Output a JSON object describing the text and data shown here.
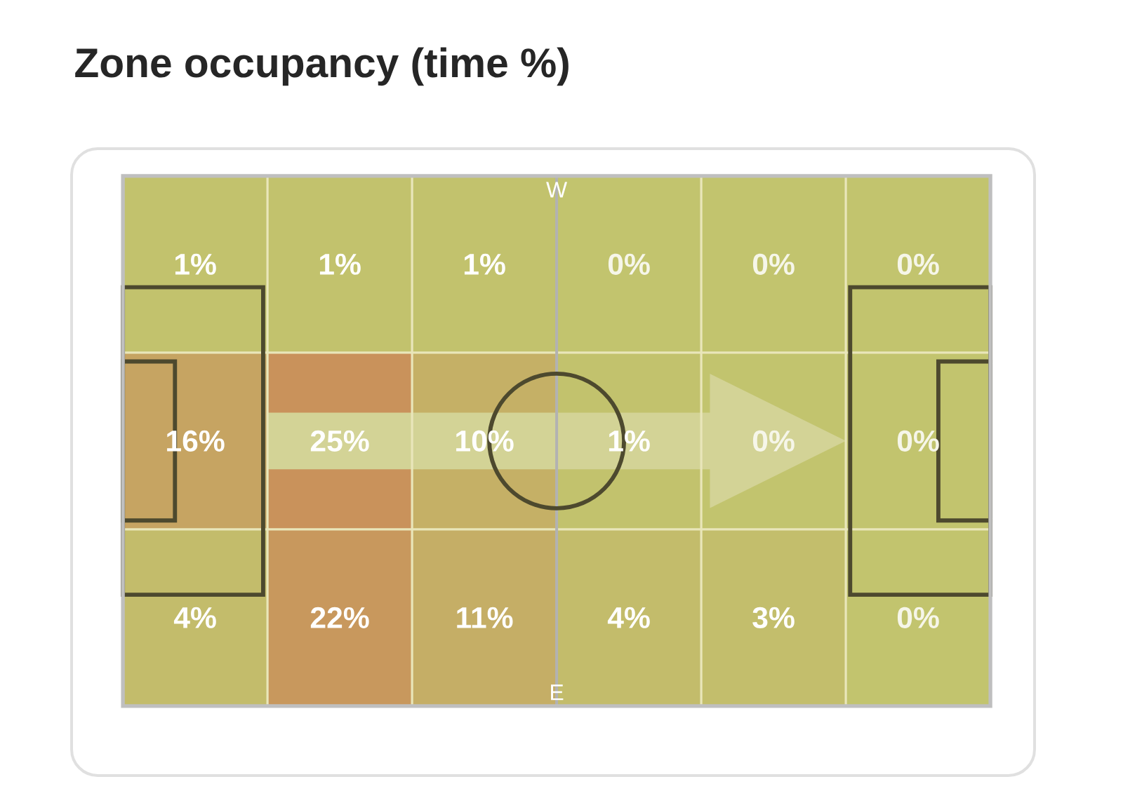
{
  "chart_data": {
    "type": "heatmap",
    "title": "Zone occupancy (time %)",
    "categories": [
      null,
      null,
      null,
      null,
      null,
      null
    ],
    "y_categories": [
      null,
      null,
      null
    ],
    "cells": [
      [
        1,
        1,
        1,
        0,
        0,
        0
      ],
      [
        16,
        25,
        10,
        1,
        0,
        0
      ],
      [
        4,
        22,
        11,
        4,
        3,
        0
      ]
    ],
    "cell_labels": [
      [
        "1%",
        "1%",
        "1%",
        "0%",
        "0%",
        "0%"
      ],
      [
        "16%",
        "25%",
        "10%",
        "1%",
        "0%",
        "0%"
      ],
      [
        "4%",
        "22%",
        "11%",
        "4%",
        "3%",
        "0%"
      ]
    ],
    "annotations": [
      "W",
      "E"
    ]
  }
}
